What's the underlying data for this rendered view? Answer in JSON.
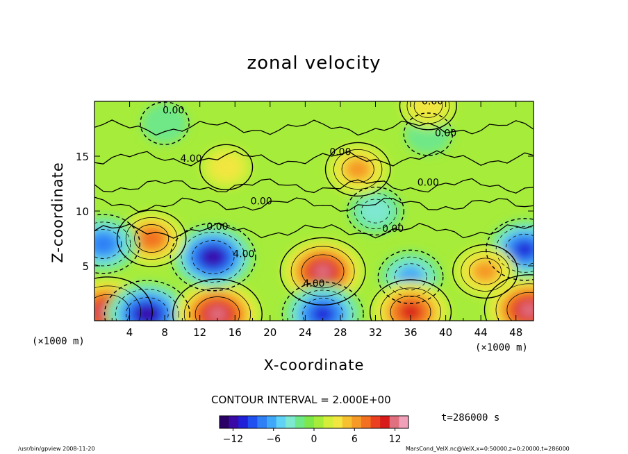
{
  "chart_data": {
    "type": "heatmap",
    "title": "zonal velocity",
    "xlabel": "X-coordinate",
    "ylabel": "Z-coordinate",
    "x_unit_left": "(×1000 m)",
    "x_unit_right": "(×1000 m)",
    "xlim": [
      0,
      50
    ],
    "ylim": [
      0,
      20
    ],
    "x_ticks": [
      "4",
      "8",
      "12",
      "16",
      "20",
      "24",
      "28",
      "32",
      "36",
      "40",
      "44",
      "48"
    ],
    "y_ticks": [
      "5",
      "10",
      "15"
    ],
    "contour_interval_label": "CONTOUR INTERVAL = 2.000E+00",
    "contour_labels": [
      "0.00",
      "0.00",
      "0.00",
      "0.00",
      "4.00",
      "0.00",
      "0.00",
      "0.00",
      "0.00",
      "4.00",
      "4.00"
    ],
    "colorbar": {
      "range": [
        -14,
        14
      ],
      "tick_labels": [
        "−12",
        "−6",
        "0",
        "6",
        "12"
      ],
      "colors": [
        "#2a0066",
        "#3a0aa6",
        "#2020d8",
        "#2050f0",
        "#2f7ff5",
        "#40a8f8",
        "#5fd2f6",
        "#7ee8d0",
        "#6fe888",
        "#7ce84a",
        "#a6ec3a",
        "#d4ee3a",
        "#f2e640",
        "#f6c030",
        "#f59a26",
        "#f27020",
        "#ea4020",
        "#d81a1a",
        "#e07080",
        "#f0a0b8"
      ]
    },
    "features": [
      {
        "x": 1.5,
        "z": 0.8,
        "value": 12
      },
      {
        "x": 6,
        "z": 0.6,
        "value": -11
      },
      {
        "x": 14,
        "z": 0.6,
        "value": 12
      },
      {
        "x": 13.5,
        "z": 5.8,
        "value": -11
      },
      {
        "x": 6.5,
        "z": 7.5,
        "value": 7
      },
      {
        "x": 1,
        "z": 7,
        "value": -8
      },
      {
        "x": 26,
        "z": 4.5,
        "value": 11
      },
      {
        "x": 26,
        "z": 0.6,
        "value": -10
      },
      {
        "x": 36,
        "z": 4,
        "value": -6
      },
      {
        "x": 36,
        "z": 0.8,
        "value": 10
      },
      {
        "x": 49.5,
        "z": 1,
        "value": 12
      },
      {
        "x": 49,
        "z": 6.5,
        "value": -9
      },
      {
        "x": 44.5,
        "z": 4.5,
        "value": 6
      },
      {
        "x": 32,
        "z": 10,
        "value": -4
      },
      {
        "x": 30,
        "z": 13.8,
        "value": 6
      },
      {
        "x": 15,
        "z": 14,
        "value": 3
      },
      {
        "x": 8,
        "z": 18,
        "value": -2
      },
      {
        "x": 38,
        "z": 17,
        "value": -2
      },
      {
        "x": 38,
        "z": 19.6,
        "value": 4
      }
    ]
  },
  "time_label": "t=286000 s",
  "footer_left": "/usr/bin/gpview   2008-11-20",
  "footer_right": "MarsCond_VelX.nc@VelX,x=0:50000,z=0:20000,t=286000"
}
